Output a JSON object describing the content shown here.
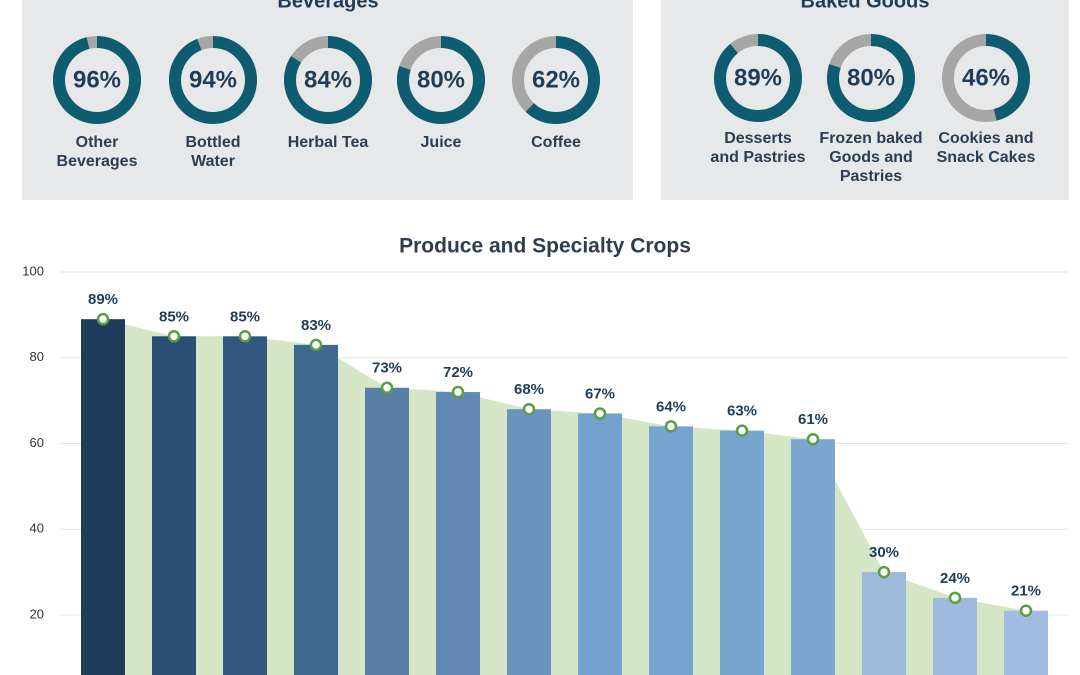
{
  "chart_data": [
    {
      "type": "donut",
      "title": "Beverages",
      "categories": [
        [
          "Other",
          "Beverages"
        ],
        [
          "Bottled",
          "Water"
        ],
        [
          "Herbal Tea"
        ],
        [
          "Juice"
        ],
        [
          "Coffee"
        ]
      ],
      "values": [
        96,
        94,
        84,
        80,
        62
      ],
      "value_labels": [
        "96%",
        "94%",
        "84%",
        "80%",
        "62%"
      ],
      "color": "#0d5c70",
      "rest_color": "#a6a6a6"
    },
    {
      "type": "donut",
      "title": "Baked Goods",
      "categories": [
        [
          "Desserts",
          "and Pastries"
        ],
        [
          "Frozen baked",
          "Goods and",
          "Pastries"
        ],
        [
          "Cookies and",
          "Snack Cakes"
        ]
      ],
      "values": [
        89,
        80,
        46
      ],
      "value_labels": [
        "89%",
        "80%",
        "46%"
      ],
      "color": "#0d5c70",
      "rest_color": "#a6a6a6"
    },
    {
      "type": "bar",
      "title": "Produce and Specialty Crops",
      "values": [
        89,
        85,
        85,
        83,
        73,
        72,
        68,
        67,
        64,
        63,
        61,
        30,
        24,
        21
      ],
      "value_labels": [
        "89%",
        "85%",
        "85%",
        "83%",
        "73%",
        "72%",
        "68%",
        "67%",
        "64%",
        "63%",
        "61%",
        "30%",
        "24%",
        "21%"
      ],
      "colors": [
        "#1f3d5a",
        "#2b4f74",
        "#31587f",
        "#3e6890",
        "#5a7fa6",
        "#6289b3",
        "#6a94bd",
        "#73a0cc",
        "#76a3cf",
        "#78a5d0",
        "#7aa6d1",
        "#9db8d9",
        "#a0bade",
        "#a2bcdf"
      ],
      "area_color": "#d4e6c6",
      "marker_color": "#5a9e3f",
      "ylim": [
        6,
        100
      ],
      "yticks": [
        20,
        40,
        60,
        80,
        100
      ],
      "grid": true
    }
  ]
}
